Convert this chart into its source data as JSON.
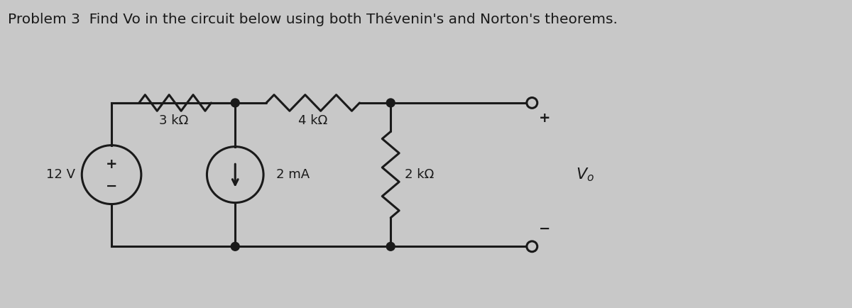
{
  "title": "Problem 3  Find Vo in the circuit below using both Thévenin's and Norton's theorems.",
  "bg_color": "#c8c8c8",
  "line_color": "#1a1a1a",
  "title_fontsize": 14.5,
  "fig_width": 12.0,
  "fig_height": 4.34,
  "vs_label": "12 V",
  "cs_label": "2 mA",
  "r1_label": "3 kΩ",
  "r2_label": "4 kΩ",
  "r3_label": "2 kΩ",
  "vo_label": "V_o",
  "plus_label": "+",
  "minus_label": "−"
}
